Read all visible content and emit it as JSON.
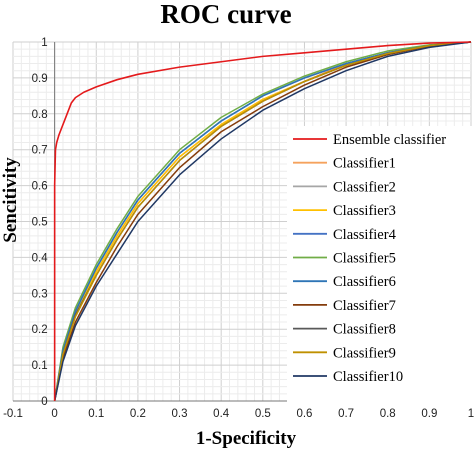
{
  "chart_data": {
    "type": "line",
    "title": "ROC curve",
    "xlabel": "1-Specificity",
    "ylabel": "Sencitivity",
    "xlim": [
      -0.1,
      1
    ],
    "ylim": [
      0,
      1
    ],
    "x_ticks": [
      -0.1,
      0,
      0.1,
      0.2,
      0.3,
      0.4,
      0.5,
      0.6,
      0.7,
      0.8,
      0.9,
      1
    ],
    "x_tick_labels": [
      "-0.1",
      "0",
      "0.1",
      "0.2",
      "0.3",
      "0.4",
      "0.5",
      "0.6",
      "0.7",
      "0.8",
      "0.9",
      "1"
    ],
    "y_ticks": [
      0,
      0.1,
      0.2,
      0.3,
      0.4,
      0.5,
      0.6,
      0.7,
      0.8,
      0.9,
      1
    ],
    "y_tick_labels": [
      "0",
      "0.1",
      "0.2",
      "0.3",
      "0.4",
      "0.5",
      "0.6",
      "0.7",
      "0.8",
      "0.9",
      "1"
    ],
    "grid": true,
    "legend_position": "right",
    "series": [
      {
        "name": "Ensemble classifier",
        "color": "#e41a1c",
        "x": [
          0,
          0,
          0.002,
          0.005,
          0.01,
          0.02,
          0.03,
          0.04,
          0.05,
          0.07,
          0.1,
          0.15,
          0.2,
          0.3,
          0.4,
          0.5,
          0.6,
          0.7,
          0.8,
          0.9,
          1
        ],
        "y": [
          0,
          0.6,
          0.7,
          0.72,
          0.74,
          0.77,
          0.8,
          0.83,
          0.845,
          0.86,
          0.875,
          0.895,
          0.91,
          0.93,
          0.945,
          0.96,
          0.97,
          0.98,
          0.99,
          0.997,
          1
        ]
      },
      {
        "name": "Classifier1",
        "color": "#f5a25d",
        "x": [
          0,
          0.02,
          0.05,
          0.1,
          0.15,
          0.2,
          0.3,
          0.4,
          0.5,
          0.6,
          0.7,
          0.8,
          0.9,
          1
        ],
        "y": [
          0,
          0.13,
          0.24,
          0.36,
          0.46,
          0.55,
          0.68,
          0.77,
          0.84,
          0.89,
          0.94,
          0.97,
          0.99,
          1
        ]
      },
      {
        "name": "Classifier2",
        "color": "#a6a6a6",
        "x": [
          0,
          0.02,
          0.05,
          0.1,
          0.15,
          0.2,
          0.3,
          0.4,
          0.5,
          0.6,
          0.7,
          0.8,
          0.9,
          1
        ],
        "y": [
          0,
          0.14,
          0.25,
          0.37,
          0.47,
          0.56,
          0.69,
          0.78,
          0.85,
          0.9,
          0.94,
          0.97,
          0.99,
          1
        ]
      },
      {
        "name": "Classifier3",
        "color": "#ffc000",
        "x": [
          0,
          0.02,
          0.05,
          0.1,
          0.15,
          0.2,
          0.3,
          0.4,
          0.5,
          0.6,
          0.7,
          0.8,
          0.9,
          1
        ],
        "y": [
          0,
          0.13,
          0.24,
          0.36,
          0.46,
          0.55,
          0.68,
          0.77,
          0.84,
          0.89,
          0.935,
          0.965,
          0.99,
          1
        ]
      },
      {
        "name": "Classifier4",
        "color": "#4472c4",
        "x": [
          0,
          0.02,
          0.05,
          0.1,
          0.15,
          0.2,
          0.3,
          0.4,
          0.5,
          0.6,
          0.7,
          0.8,
          0.9,
          1
        ],
        "y": [
          0,
          0.14,
          0.25,
          0.37,
          0.47,
          0.56,
          0.69,
          0.78,
          0.85,
          0.9,
          0.94,
          0.97,
          0.99,
          1
        ]
      },
      {
        "name": "Classifier5",
        "color": "#70ad47",
        "x": [
          0,
          0.02,
          0.05,
          0.1,
          0.15,
          0.2,
          0.3,
          0.4,
          0.5,
          0.6,
          0.7,
          0.8,
          0.9,
          1
        ],
        "y": [
          0,
          0.15,
          0.26,
          0.38,
          0.48,
          0.57,
          0.7,
          0.79,
          0.855,
          0.905,
          0.945,
          0.975,
          0.992,
          1
        ]
      },
      {
        "name": "Classifier6",
        "color": "#2e75b6",
        "x": [
          0,
          0.02,
          0.05,
          0.1,
          0.15,
          0.2,
          0.3,
          0.4,
          0.5,
          0.6,
          0.7,
          0.8,
          0.9,
          1
        ],
        "y": [
          0,
          0.14,
          0.25,
          0.37,
          0.47,
          0.56,
          0.69,
          0.78,
          0.85,
          0.9,
          0.94,
          0.97,
          0.99,
          1
        ]
      },
      {
        "name": "Classifier7",
        "color": "#843c0c",
        "x": [
          0,
          0.02,
          0.05,
          0.1,
          0.15,
          0.2,
          0.3,
          0.4,
          0.5,
          0.6,
          0.7,
          0.8,
          0.9,
          1
        ],
        "y": [
          0,
          0.12,
          0.22,
          0.33,
          0.43,
          0.52,
          0.65,
          0.75,
          0.82,
          0.88,
          0.93,
          0.965,
          0.988,
          1
        ]
      },
      {
        "name": "Classifier8",
        "color": "#595959",
        "x": [
          0,
          0.02,
          0.05,
          0.1,
          0.15,
          0.2,
          0.3,
          0.4,
          0.5,
          0.6,
          0.7,
          0.8,
          0.9,
          1
        ],
        "y": [
          0,
          0.13,
          0.24,
          0.35,
          0.45,
          0.54,
          0.67,
          0.765,
          0.835,
          0.89,
          0.935,
          0.968,
          0.99,
          1
        ]
      },
      {
        "name": "Classifier9",
        "color": "#bf9000",
        "x": [
          0,
          0.02,
          0.05,
          0.1,
          0.15,
          0.2,
          0.3,
          0.4,
          0.5,
          0.6,
          0.7,
          0.8,
          0.9,
          1
        ],
        "y": [
          0,
          0.13,
          0.235,
          0.35,
          0.45,
          0.54,
          0.67,
          0.765,
          0.835,
          0.89,
          0.935,
          0.968,
          0.99,
          1
        ]
      },
      {
        "name": "Classifier10",
        "color": "#203864",
        "x": [
          0,
          0.02,
          0.05,
          0.1,
          0.15,
          0.2,
          0.3,
          0.4,
          0.5,
          0.6,
          0.7,
          0.8,
          0.9,
          1
        ],
        "y": [
          0,
          0.11,
          0.21,
          0.32,
          0.41,
          0.5,
          0.63,
          0.73,
          0.81,
          0.87,
          0.92,
          0.96,
          0.985,
          1
        ]
      }
    ]
  }
}
